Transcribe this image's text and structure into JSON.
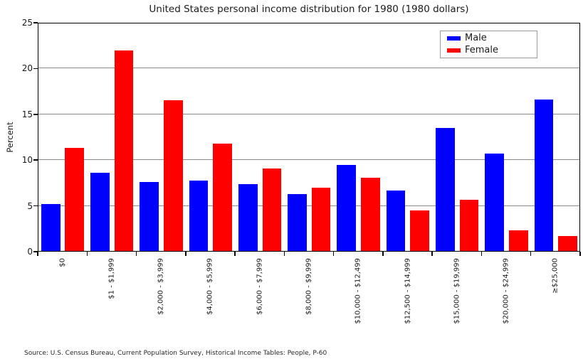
{
  "figure": {
    "title": "United States personal income distribution for 1980 (1980 dollars)",
    "source_note": "Source: U.S. Census Bureau, Current Population Survey, Historical Income Tables: People, P-60"
  },
  "axes": {
    "ylabel": "Percent",
    "y_tick_labels": [
      "0",
      "5",
      "10",
      "15",
      "20",
      "25"
    ]
  },
  "legend": {
    "position": "upper right",
    "items": [
      {
        "label": "Male",
        "color": "#0000ff"
      },
      {
        "label": "Female",
        "color": "#ff0000"
      }
    ]
  },
  "colors": {
    "male_bar": "#0000ff",
    "female_bar": "#ff0000",
    "gridline": "#8a8a8a",
    "spine": "#000000",
    "background": "#ffffff"
  },
  "chart_data": {
    "type": "bar",
    "title": "United States personal income distribution for 1980 (1980 dollars)",
    "xlabel": "",
    "ylabel": "Percent",
    "ylim": [
      0,
      25
    ],
    "y_ticks": [
      0,
      5,
      10,
      15,
      20,
      25
    ],
    "grid": true,
    "legend_position": "upper right",
    "categories": [
      "$0",
      "$1 - $1,999",
      "$2,000 - $3,999",
      "$4,000 - $5,999",
      "$6,000 - $7,999",
      "$8,000 - $9,999",
      "$10,000 - $12,499",
      "$12,500 - $14,999",
      "$15,000 - $19,999",
      "$20,000 - $24,999",
      "≥$25,000"
    ],
    "series": [
      {
        "name": "Male",
        "color": "#0000ff",
        "values": [
          5.2,
          8.6,
          7.6,
          7.8,
          7.4,
          6.3,
          9.5,
          6.7,
          13.5,
          10.7,
          16.6
        ]
      },
      {
        "name": "Female",
        "color": "#ff0000",
        "values": [
          11.3,
          22.0,
          16.5,
          11.8,
          9.1,
          7.0,
          8.1,
          4.5,
          5.7,
          2.3,
          1.7
        ]
      }
    ]
  }
}
